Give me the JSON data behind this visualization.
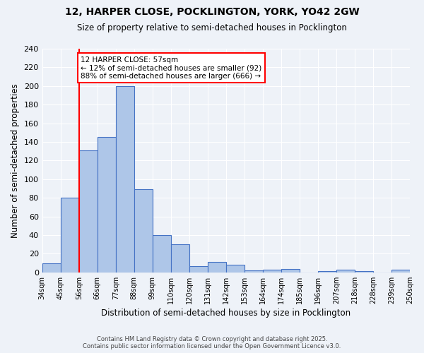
{
  "title_line1": "12, HARPER CLOSE, POCKLINGTON, YORK, YO42 2GW",
  "title_line2": "Size of property relative to semi-detached houses in Pocklington",
  "xlabel": "Distribution of semi-detached houses by size in Pocklington",
  "ylabel": "Number of semi-detached properties",
  "tick_labels": [
    "34sqm",
    "45sqm",
    "56sqm",
    "66sqm",
    "77sqm",
    "88sqm",
    "99sqm",
    "110sqm",
    "120sqm",
    "131sqm",
    "142sqm",
    "153sqm",
    "164sqm",
    "174sqm",
    "185sqm",
    "196sqm",
    "207sqm",
    "218sqm",
    "228sqm",
    "239sqm",
    "250sqm"
  ],
  "values": [
    10,
    80,
    131,
    145,
    200,
    89,
    40,
    30,
    7,
    11,
    8,
    2,
    3,
    4,
    0,
    1,
    3,
    1,
    0,
    3
  ],
  "bar_color": "#aec6e8",
  "bar_edge_color": "#4472c4",
  "vline_color": "red",
  "vline_x": 2.0,
  "annotation_title": "12 HARPER CLOSE: 57sqm",
  "annotation_line1": "← 12% of semi-detached houses are smaller (92)",
  "annotation_line2": "88% of semi-detached houses are larger (666) →",
  "ylim": [
    0,
    240
  ],
  "yticks": [
    0,
    20,
    40,
    60,
    80,
    100,
    120,
    140,
    160,
    180,
    200,
    220,
    240
  ],
  "footer_line1": "Contains HM Land Registry data © Crown copyright and database right 2025.",
  "footer_line2": "Contains public sector information licensed under the Open Government Licence v3.0.",
  "background_color": "#eef2f8"
}
